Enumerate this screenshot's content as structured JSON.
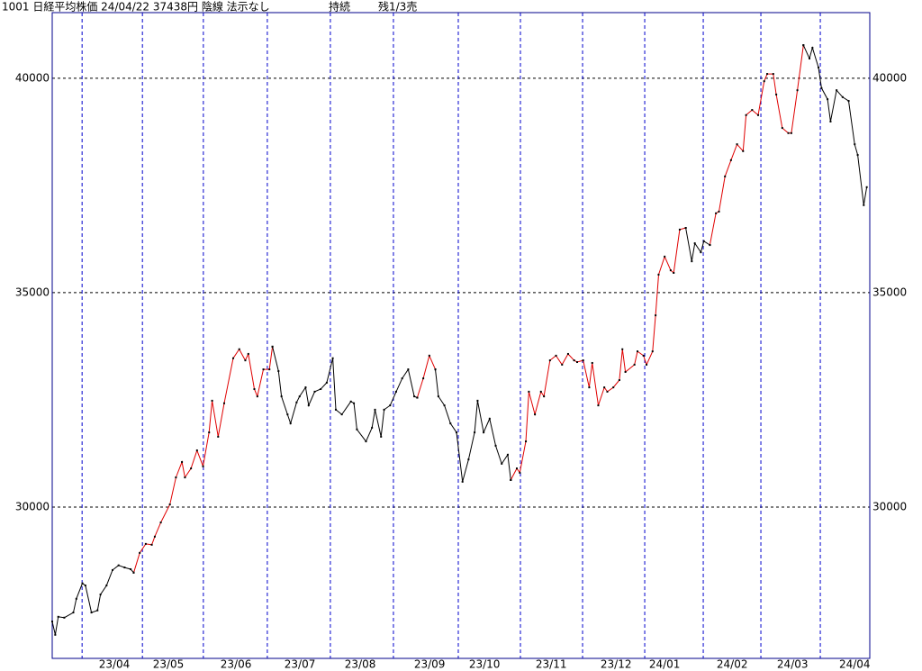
{
  "chart_data": {
    "type": "line",
    "title": "1001 日経平均株価 24/04/22 37438円 陰線 法示なし",
    "status": "持続",
    "signal": "残1/3売",
    "xlim": [
      0,
      271
    ],
    "ylim": [
      26470,
      41530
    ],
    "yticks": [
      30000,
      35000,
      40000
    ],
    "xgrid": [
      9.9,
      29.9,
      50.1,
      71.3,
      92.2,
      113.1,
      134.6,
      155.2,
      175.8,
      196.4,
      215.8,
      234.9,
      254.6
    ],
    "xticks": [
      {
        "value": 20.6,
        "label": "23/04"
      },
      {
        "value": 38.5,
        "label": "23/05"
      },
      {
        "value": 60.9,
        "label": "23/06"
      },
      {
        "value": 82.1,
        "label": "23/07"
      },
      {
        "value": 102.1,
        "label": "23/08"
      },
      {
        "value": 125.1,
        "label": "23/09"
      },
      {
        "value": 143.3,
        "label": "23/10"
      },
      {
        "value": 165.4,
        "label": "23/11"
      },
      {
        "value": 186.9,
        "label": "23/12"
      },
      {
        "value": 203,
        "label": "24/01"
      },
      {
        "value": 225.4,
        "label": "24/02"
      },
      {
        "value": 245.4,
        "label": "24/03"
      },
      {
        "value": 266,
        "label": "24/04"
      }
    ],
    "grid": true,
    "frame_color": "#00008b",
    "ygrid_color": "#000000",
    "xgrid_color": "#0000cc",
    "marker_color": "#000000",
    "series": [
      {
        "color": "#000000",
        "x": [
          0,
          1,
          2,
          4,
          7,
          8,
          10,
          11,
          13,
          15,
          16,
          18,
          20,
          22,
          24,
          26,
          27
        ],
        "values": [
          27330,
          27020,
          27440,
          27420,
          27540,
          27860,
          28220,
          28170,
          27540,
          27590,
          27960,
          28170,
          28530,
          28640,
          28590,
          28550,
          28470
        ]
      },
      {
        "color": "#e00000",
        "x": [
          27,
          29,
          31,
          33,
          34,
          36,
          39,
          41,
          43,
          44,
          46,
          48,
          50,
          52,
          53,
          55,
          57,
          60,
          62,
          64,
          65,
          67,
          68,
          70,
          72,
          73
        ],
        "values": [
          28470,
          28930,
          29140,
          29120,
          29310,
          29640,
          30060,
          30690,
          31050,
          30690,
          30900,
          31320,
          30950,
          31740,
          32480,
          31640,
          32420,
          33470,
          33680,
          33420,
          33570,
          32750,
          32580,
          33210,
          33210,
          33740
        ]
      },
      {
        "color": "#000000",
        "x": [
          73,
          75,
          76,
          78,
          79,
          81,
          82,
          84,
          85,
          87,
          89,
          91,
          93,
          94,
          96,
          99,
          100,
          101,
          104,
          106,
          107,
          109,
          110,
          112,
          114,
          116,
          118,
          120,
          121
        ],
        "values": [
          33740,
          33170,
          32580,
          32160,
          31950,
          32440,
          32580,
          32790,
          32370,
          32690,
          32750,
          32900,
          33470,
          32270,
          32160,
          32460,
          32420,
          31810,
          31530,
          31850,
          32270,
          31640,
          32270,
          32370,
          32690,
          33000,
          33210,
          32580,
          32550
        ]
      },
      {
        "color": "#e00000",
        "x": [
          121,
          123,
          125,
          127
        ],
        "values": [
          32550,
          33000,
          33530,
          33210
        ]
      },
      {
        "color": "#000000",
        "x": [
          127,
          128,
          130,
          132,
          134,
          136,
          138,
          140,
          141,
          143,
          145,
          147,
          149,
          151,
          152
        ],
        "values": [
          33210,
          32580,
          32370,
          31950,
          31740,
          30590,
          31110,
          31740,
          32480,
          31740,
          32060,
          31430,
          31010,
          31220,
          30630
        ]
      },
      {
        "color": "#e00000",
        "x": [
          152,
          154,
          155,
          157,
          158,
          160,
          162,
          163,
          165,
          167,
          169,
          171,
          173,
          174,
          176,
          178,
          179,
          181,
          183,
          184,
          186,
          188,
          189,
          190,
          193,
          194,
          196,
          197,
          199,
          200,
          201,
          203,
          205,
          206,
          208,
          210
        ],
        "values": [
          30630,
          30900,
          30800,
          31530,
          32690,
          32160,
          32690,
          32580,
          33420,
          33530,
          33320,
          33570,
          33420,
          33380,
          33420,
          32790,
          33360,
          32370,
          32790,
          32690,
          32790,
          32960,
          33680,
          33150,
          33320,
          33630,
          33530,
          33320,
          33630,
          34470,
          35420,
          35840,
          35520,
          35460,
          36470,
          36510
        ]
      },
      {
        "color": "#000000",
        "x": [
          210,
          212,
          213,
          215,
          216,
          218
        ],
        "values": [
          36510,
          35730,
          36150,
          35940,
          36200,
          36110
        ]
      },
      {
        "color": "#e00000",
        "x": [
          218,
          220,
          221,
          223,
          225,
          227,
          229,
          230,
          232,
          234,
          236,
          237,
          239,
          240,
          242,
          244,
          245,
          247,
          249
        ],
        "values": [
          36110,
          36850,
          36890,
          37710,
          38090,
          38460,
          38300,
          39140,
          39260,
          39140,
          39930,
          40100,
          40100,
          39620,
          38840,
          38720,
          38720,
          39720,
          40770
        ]
      },
      {
        "color": "#000000",
        "x": [
          249,
          251,
          252,
          254,
          255,
          257,
          258,
          260,
          262,
          264,
          266,
          267,
          269,
          270
        ],
        "values": [
          40770,
          40460,
          40710,
          40250,
          39770,
          39510,
          38990,
          39720,
          39560,
          39470,
          38460,
          38210,
          37040,
          37460
        ]
      }
    ]
  }
}
